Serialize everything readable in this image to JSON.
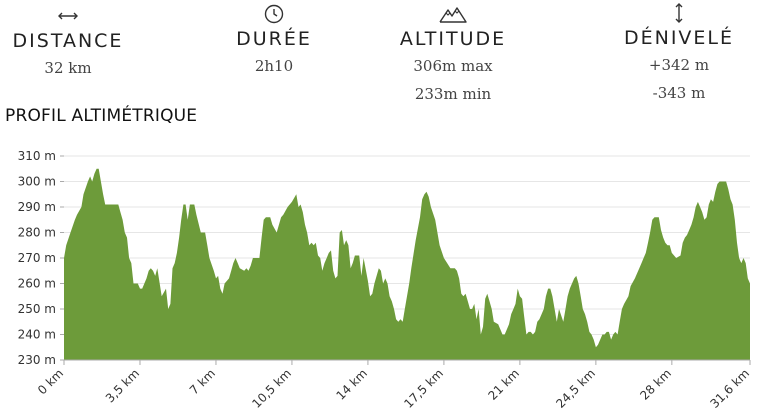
{
  "stats": {
    "distance": {
      "icon": "horizontal-arrows-icon",
      "label": "DISTANCE",
      "value": "32 km"
    },
    "duree": {
      "icon": "clock-icon",
      "label": "DURÉE",
      "value": "2h10"
    },
    "altitude": {
      "icon": "mountain-icon",
      "label": "ALTITUDE",
      "max": "306m max",
      "min": "233m min"
    },
    "denivele": {
      "icon": "vertical-arrows-icon",
      "label": "DÉNIVELÉ",
      "gain": "+342 m",
      "loss": "-343 m"
    }
  },
  "section_title": "PROFIL ALTIMÉTRIQUE",
  "colors": {
    "fill": "#6d9b3a",
    "grid": "#e6e6e6",
    "axis": "#aaaaaa"
  },
  "chart_data": {
    "type": "area",
    "title": "PROFIL ALTIMÉTRIQUE",
    "xlabel": "",
    "ylabel": "",
    "xlim": [
      0,
      31.6
    ],
    "ylim": [
      230,
      310
    ],
    "grid": true,
    "y_ticks": [
      230,
      240,
      250,
      260,
      270,
      280,
      290,
      300,
      310
    ],
    "y_tick_labels": [
      "230 m",
      "240 m",
      "250 m",
      "260 m",
      "270 m",
      "280 m",
      "290 m",
      "300 m",
      "310 m"
    ],
    "x_ticks": [
      0,
      3.5,
      7,
      10.5,
      14,
      17.5,
      21,
      24.5,
      28,
      31.6
    ],
    "x_tick_labels": [
      "0 km",
      "3,5 km",
      "7 km",
      "10,5 km",
      "14 km",
      "17,5 km",
      "21 km",
      "24,5 km",
      "28 km",
      "31,6 km"
    ],
    "series": [
      {
        "x": [
          0,
          0.1,
          0.3,
          0.5,
          0.6,
          0.8,
          0.9,
          1.1,
          1.2,
          1.3,
          1.4,
          1.5,
          1.6,
          1.7,
          1.8,
          1.9,
          2.0,
          2.1,
          2.3,
          2.5,
          2.6,
          2.7,
          2.8,
          2.9,
          3.0,
          3.1,
          3.2,
          3.4,
          3.5,
          3.6,
          3.8,
          3.9,
          4.0,
          4.1,
          4.2,
          4.3,
          4.5,
          4.7,
          4.8,
          4.9,
          5.0,
          5.1,
          5.2,
          5.3,
          5.4,
          5.5,
          5.6,
          5.7,
          5.8,
          6.0,
          6.1,
          6.3,
          6.4,
          6.5,
          6.6,
          6.7,
          6.9,
          7.0,
          7.1,
          7.2,
          7.3,
          7.4,
          7.6,
          7.7,
          7.8,
          7.9,
          8.0,
          8.1,
          8.3,
          8.4,
          8.5,
          8.6,
          8.7,
          8.8,
          9.0,
          9.1,
          9.2,
          9.3,
          9.4,
          9.5,
          9.6,
          9.8,
          10.0,
          10.1,
          10.3,
          10.5,
          10.7,
          10.8,
          10.9,
          11.0,
          11.1,
          11.2,
          11.3,
          11.4,
          11.5,
          11.6,
          11.7,
          11.8,
          11.9,
          12.0,
          12.1,
          12.2,
          12.3,
          12.4,
          12.5,
          12.6,
          12.7,
          12.8,
          12.9,
          13.0,
          13.1,
          13.2,
          13.3,
          13.4,
          13.5,
          13.6,
          13.7,
          13.8,
          14.0,
          14.1,
          14.2,
          14.3,
          14.5,
          14.6,
          14.7,
          14.8,
          14.9,
          15.0,
          15.1,
          15.2,
          15.3,
          15.4,
          15.5,
          15.6,
          15.7,
          15.9,
          16.0,
          16.2,
          16.4,
          16.5,
          16.6,
          16.7,
          16.8,
          16.9,
          17.1,
          17.2,
          17.3,
          17.5,
          17.8,
          18.0,
          18.1,
          18.2,
          18.3,
          18.4,
          18.5,
          18.6,
          18.7,
          18.8,
          18.9,
          19.0,
          19.1,
          19.2,
          19.3,
          19.4,
          19.5,
          19.6,
          19.7,
          19.8,
          20.0,
          20.2,
          20.3,
          20.5,
          20.6,
          20.7,
          20.8,
          20.9,
          21.0,
          21.1,
          21.2,
          21.3,
          21.4,
          21.5,
          21.6,
          21.7,
          21.8,
          21.9,
          22.0,
          22.1,
          22.2,
          22.3,
          22.4,
          22.5,
          22.6,
          22.7,
          22.8,
          23.0,
          23.1,
          23.2,
          23.3,
          23.4,
          23.5,
          23.6,
          23.7,
          23.8,
          23.9,
          24.0,
          24.1,
          24.2,
          24.3,
          24.4,
          24.5,
          24.6,
          24.7,
          24.8,
          24.9,
          25.0,
          25.1,
          25.2,
          25.3,
          25.4,
          25.5,
          25.6,
          25.7,
          25.8,
          26.0,
          26.1,
          26.3,
          26.5,
          26.6,
          26.7,
          26.8,
          26.9,
          27.0,
          27.1,
          27.2,
          27.3,
          27.4,
          27.5,
          27.6,
          27.7,
          27.8,
          27.9,
          28.0,
          28.2,
          28.4,
          28.5,
          28.6,
          28.7,
          28.8,
          28.9,
          29.0,
          29.1,
          29.2,
          29.3,
          29.4,
          29.5,
          29.6,
          29.7,
          29.8,
          29.9,
          30.0,
          30.1,
          30.2,
          30.3,
          30.4,
          30.5,
          30.6,
          30.7,
          30.8,
          30.9,
          31.0,
          31.1,
          31.2,
          31.3,
          31.4,
          31.5,
          31.6
        ],
        "y": [
          270,
          275,
          280,
          285,
          287,
          290,
          295,
          300,
          302,
          300,
          303,
          305,
          305,
          300,
          295,
          291,
          291,
          291,
          291,
          291,
          288,
          285,
          280,
          278,
          270,
          268,
          260,
          260,
          258,
          258,
          262,
          265,
          266,
          265,
          263,
          266,
          255,
          258,
          250,
          252,
          266,
          268,
          272,
          278,
          285,
          291,
          291,
          285,
          291,
          291,
          287,
          280,
          280,
          280,
          275,
          270,
          265,
          262,
          263,
          258,
          256,
          260,
          262,
          265,
          268,
          270,
          268,
          266,
          265,
          266,
          265,
          267,
          270,
          270,
          270,
          278,
          285,
          286,
          286,
          286,
          283,
          280,
          286,
          287,
          290,
          292,
          295,
          290,
          291,
          288,
          283,
          280,
          275,
          276,
          275,
          276,
          271,
          270,
          265,
          268,
          270,
          272,
          273,
          265,
          262,
          263,
          280,
          281,
          275,
          277,
          275,
          266,
          268,
          271,
          271,
          271,
          263,
          270,
          261,
          255,
          256,
          260,
          266,
          265,
          260,
          262,
          260,
          255,
          253,
          250,
          246,
          245,
          246,
          245,
          250,
          260,
          266,
          277,
          286,
          293,
          295,
          296,
          294,
          290,
          285,
          280,
          275,
          270,
          266,
          266,
          265,
          262,
          256,
          255,
          256,
          253,
          250,
          250,
          252,
          246,
          250,
          240,
          243,
          254,
          256,
          253,
          250,
          245,
          244,
          240,
          240,
          244,
          248,
          250,
          252,
          258,
          255,
          254,
          247,
          240,
          241,
          241,
          240,
          241,
          245,
          246,
          248,
          250,
          255,
          258,
          258,
          255,
          250,
          245,
          250,
          245,
          250,
          255,
          258,
          260,
          262,
          263,
          260,
          255,
          250,
          248,
          245,
          241,
          240,
          238,
          235,
          236,
          238,
          240,
          240,
          241,
          241,
          238,
          240,
          241,
          240,
          245,
          250,
          252,
          255,
          259,
          262,
          266,
          268,
          270,
          272,
          276,
          280,
          285,
          286,
          286,
          286,
          281,
          278,
          276,
          275,
          275,
          272,
          270,
          271,
          276,
          278,
          279,
          281,
          283,
          286,
          290,
          292,
          290,
          288,
          285,
          286,
          291,
          293,
          292,
          296,
          299,
          300,
          300,
          300,
          300,
          297,
          293,
          291,
          285,
          276,
          270,
          268,
          270,
          268,
          262,
          260
        ]
      }
    ]
  }
}
